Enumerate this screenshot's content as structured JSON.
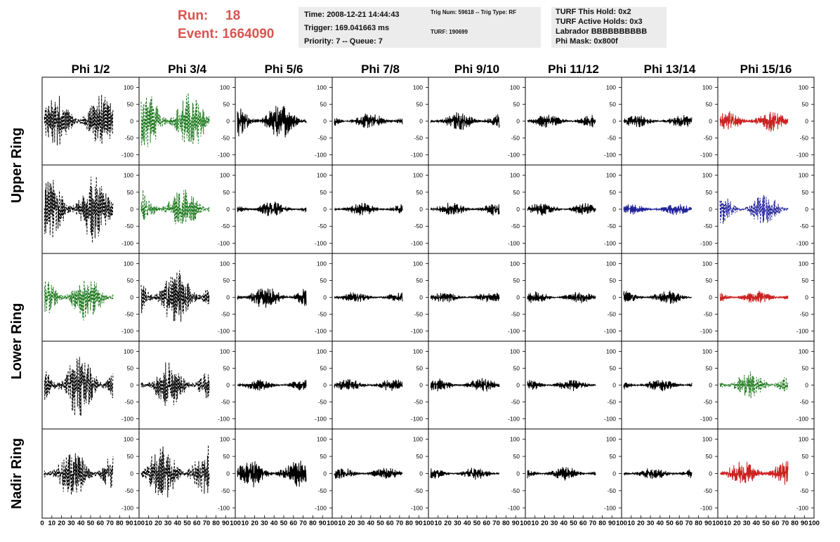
{
  "header": {
    "run_label": "Run:",
    "run_value": "18",
    "event_label": "Event:",
    "event_value": "1664090"
  },
  "info_box_1": {
    "time": "Time: 2008-12-21 14:44:43",
    "trigger": "Trigger: 169.041663 ms",
    "priority": "Priority: 7 -- Queue: 7"
  },
  "info_box_2": {
    "trig": "Trig Num: 59618 -- Trig Type: RF",
    "turf": "TURF: 190699"
  },
  "info_box_3": {
    "hold": "TURF This Hold: 0x2",
    "active": "TURF Active Holds: 0x3",
    "labrador": "Labrador BBBBBBBBBB",
    "phimask": "Phi Mask: 0x800f"
  },
  "chart_data": {
    "type": "line",
    "title": "",
    "columns": [
      "Phi 1/2",
      "Phi 3/4",
      "Phi 5/6",
      "Phi 7/8",
      "Phi 9/10",
      "Phi 11/12",
      "Phi 13/14",
      "Phi 15/16"
    ],
    "rows": [
      "Upper Ring",
      "Upper Ring",
      "Lower Ring",
      "Lower Ring",
      "Nadir Ring"
    ],
    "row_labels": [
      "Upper Ring",
      "Lower Ring",
      "Nadir Ring"
    ],
    "xlim": [
      0,
      100
    ],
    "ylim": [
      -130,
      130
    ],
    "y_ticks": [
      100,
      50,
      0,
      -50,
      -100
    ],
    "x_ticks_first": [
      "0",
      "10",
      "20",
      "30",
      "40",
      "50",
      "60",
      "70",
      "80",
      "90",
      "100"
    ],
    "x_ticks_other": [
      "10",
      "20",
      "30",
      "40",
      "50",
      "60",
      "70",
      "80",
      "90",
      "100"
    ],
    "colors": {
      "black": "#000000",
      "green": "#1e7a1e",
      "red": "#cc2222",
      "blue": "#22229a"
    },
    "panels": [
      [
        {
          "color": "black",
          "dash": true,
          "amp": 70
        },
        {
          "color": "green",
          "dash": true,
          "amp": 75
        },
        {
          "color": "black",
          "dash": false,
          "amp": 45
        },
        {
          "color": "black",
          "dash": false,
          "amp": 22
        },
        {
          "color": "black",
          "dash": false,
          "amp": 25
        },
        {
          "color": "black",
          "dash": false,
          "amp": 18
        },
        {
          "color": "black",
          "dash": false,
          "amp": 16
        },
        {
          "color": "red",
          "dash": false,
          "amp": 30
        }
      ],
      [
        {
          "color": "black",
          "dash": true,
          "amp": 85
        },
        {
          "color": "green",
          "dash": true,
          "amp": 55
        },
        {
          "color": "black",
          "dash": false,
          "amp": 20
        },
        {
          "color": "black",
          "dash": false,
          "amp": 16
        },
        {
          "color": "black",
          "dash": false,
          "amp": 18
        },
        {
          "color": "black",
          "dash": false,
          "amp": 16
        },
        {
          "color": "blue",
          "dash": false,
          "amp": 16
        },
        {
          "color": "blue",
          "dash": true,
          "amp": 40
        }
      ],
      [
        {
          "color": "green",
          "dash": true,
          "amp": 60
        },
        {
          "color": "black",
          "dash": true,
          "amp": 75
        },
        {
          "color": "black",
          "dash": false,
          "amp": 30
        },
        {
          "color": "black",
          "dash": false,
          "amp": 14
        },
        {
          "color": "black",
          "dash": false,
          "amp": 14
        },
        {
          "color": "black",
          "dash": false,
          "amp": 16
        },
        {
          "color": "black",
          "dash": false,
          "amp": 18
        },
        {
          "color": "red",
          "dash": false,
          "amp": 18
        }
      ],
      [
        {
          "color": "black",
          "dash": true,
          "amp": 85
        },
        {
          "color": "black",
          "dash": true,
          "amp": 60
        },
        {
          "color": "black",
          "dash": false,
          "amp": 15
        },
        {
          "color": "black",
          "dash": false,
          "amp": 16
        },
        {
          "color": "black",
          "dash": false,
          "amp": 18
        },
        {
          "color": "black",
          "dash": false,
          "amp": 16
        },
        {
          "color": "black",
          "dash": false,
          "amp": 16
        },
        {
          "color": "green",
          "dash": true,
          "amp": 35
        }
      ],
      [
        {
          "color": "black",
          "dash": true,
          "amp": 65
        },
        {
          "color": "black",
          "dash": true,
          "amp": 70
        },
        {
          "color": "black",
          "dash": false,
          "amp": 35
        },
        {
          "color": "black",
          "dash": false,
          "amp": 16
        },
        {
          "color": "black",
          "dash": false,
          "amp": 16
        },
        {
          "color": "black",
          "dash": false,
          "amp": 18
        },
        {
          "color": "black",
          "dash": false,
          "amp": 16
        },
        {
          "color": "red",
          "dash": false,
          "amp": 35
        }
      ]
    ]
  }
}
